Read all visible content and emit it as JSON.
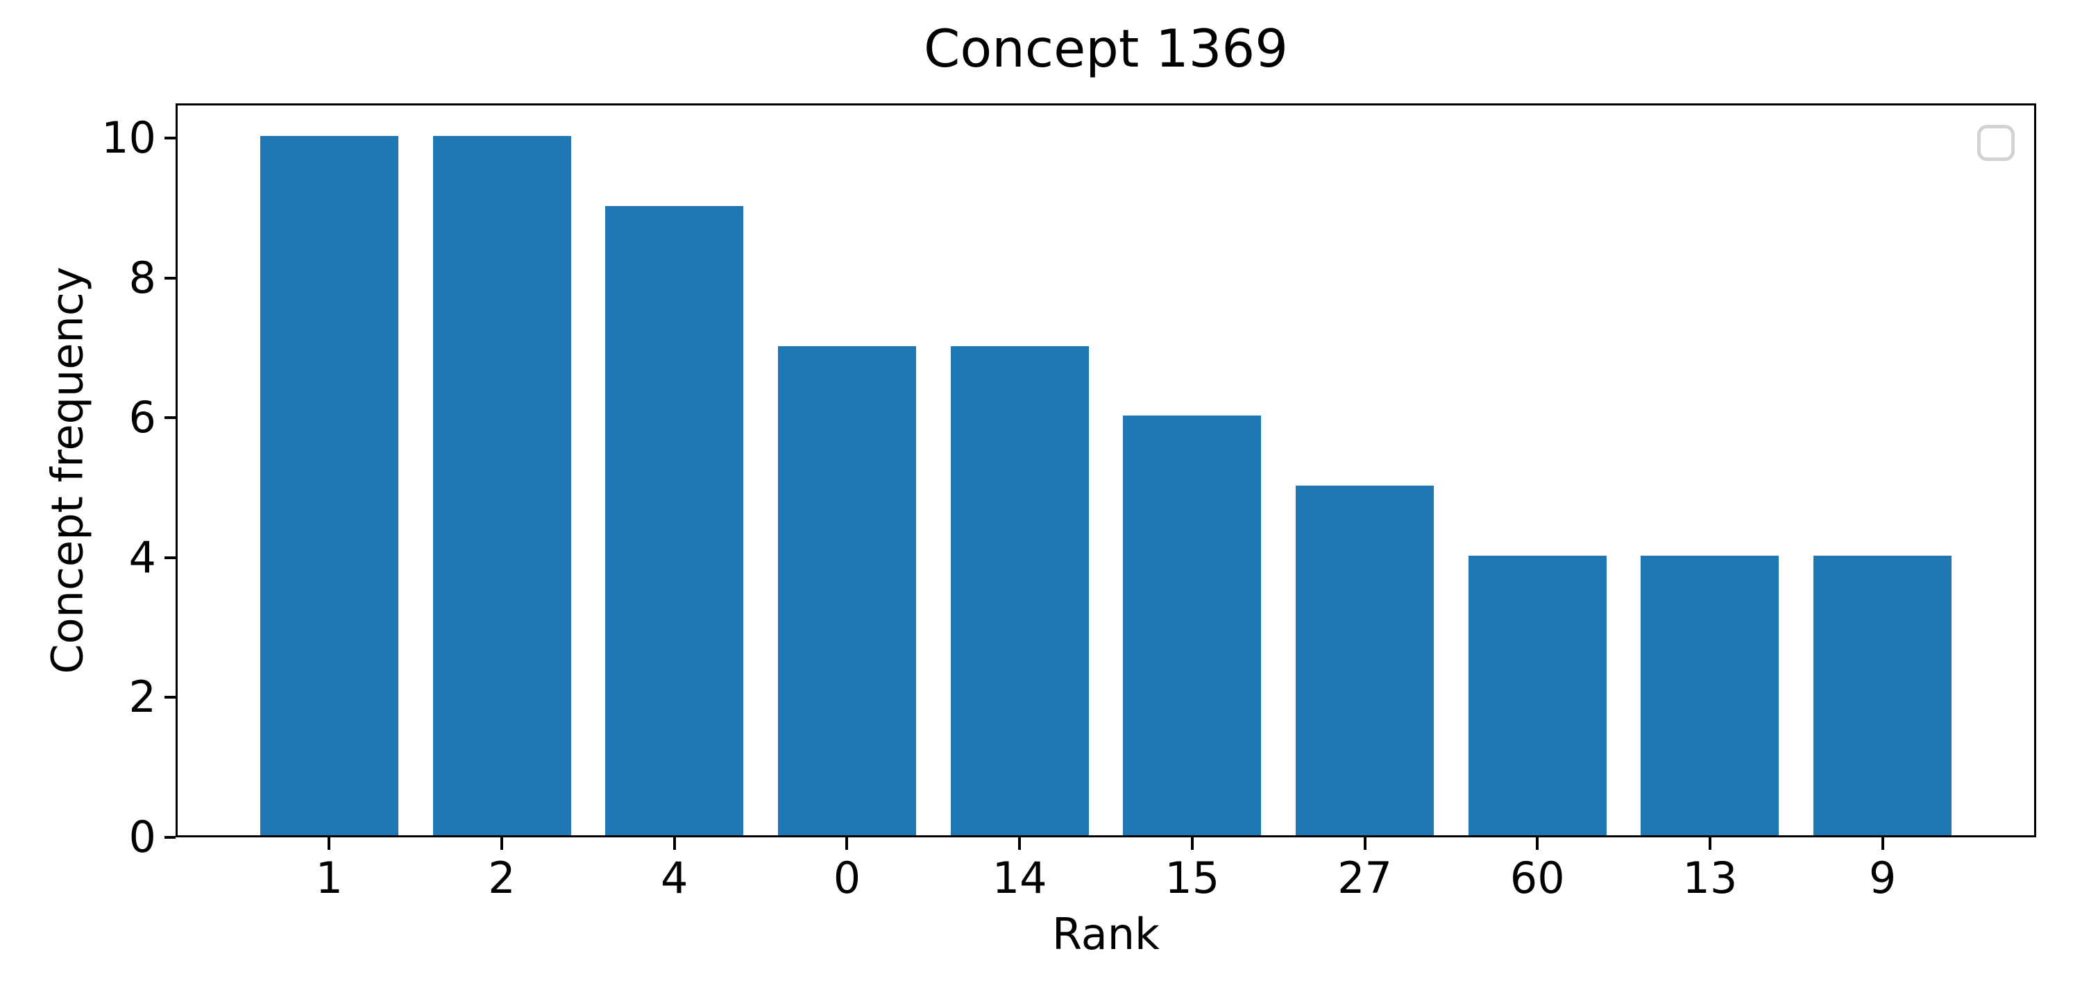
{
  "chart_data": {
    "type": "bar",
    "title": "Concept 1369",
    "xlabel": "Rank",
    "ylabel": "Concept frequency",
    "categories": [
      "1",
      "2",
      "4",
      "0",
      "14",
      "15",
      "27",
      "60",
      "13",
      "9"
    ],
    "values": [
      10,
      10,
      9,
      7,
      7,
      6,
      5,
      4,
      4,
      4
    ],
    "yticks": [
      0,
      2,
      4,
      6,
      8,
      10
    ],
    "ylim": [
      0,
      10.5
    ],
    "bar_color": "#1f77b4",
    "axis_color": "#000000",
    "grid": false,
    "legend": {
      "position": "upper-right",
      "entries": [],
      "border_color": "#d2d2d2"
    }
  }
}
